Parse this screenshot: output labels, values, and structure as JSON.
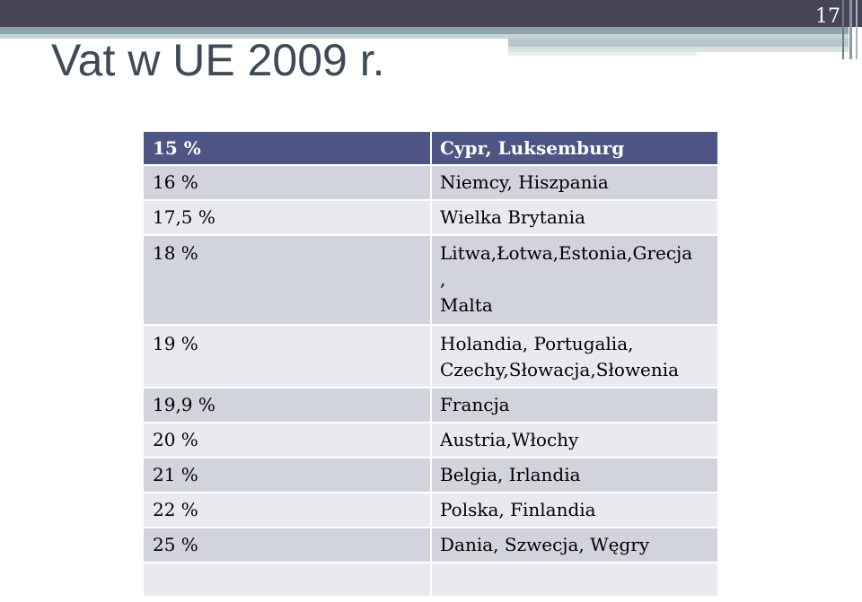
{
  "slide": {
    "number": "17",
    "title": "Vat w UE 2009 r."
  },
  "table": {
    "header": {
      "rate": "15 %",
      "countries": "Cypr, Luksemburg"
    },
    "rows": [
      {
        "rate": "16 %",
        "countries": "Niemcy, Hiszpania"
      },
      {
        "rate": "17,5 %",
        "countries": "Wielka Brytania"
      },
      {
        "rate": "18 %",
        "countries_line1": "Litwa,Łotwa,Estonia,Grecja",
        "countries_line2": ",",
        "countries_line3": "Malta"
      },
      {
        "rate": "19 %",
        "countries_line1": "Holandia, Portugalia,",
        "countries_line2": "Czechy,Słowacja,Słowenia"
      },
      {
        "rate": "19,9 %",
        "countries": "Francja"
      },
      {
        "rate": "20 %",
        "countries": "Austria,Włochy"
      },
      {
        "rate": "21 %",
        "countries": "Belgia, Irlandia"
      },
      {
        "rate": "22 %",
        "countries": "Polska, Finlandia"
      },
      {
        "rate": "25 %",
        "countries": "Dania, Szwecja, Węgry"
      },
      {
        "rate": "",
        "countries": ""
      }
    ]
  }
}
